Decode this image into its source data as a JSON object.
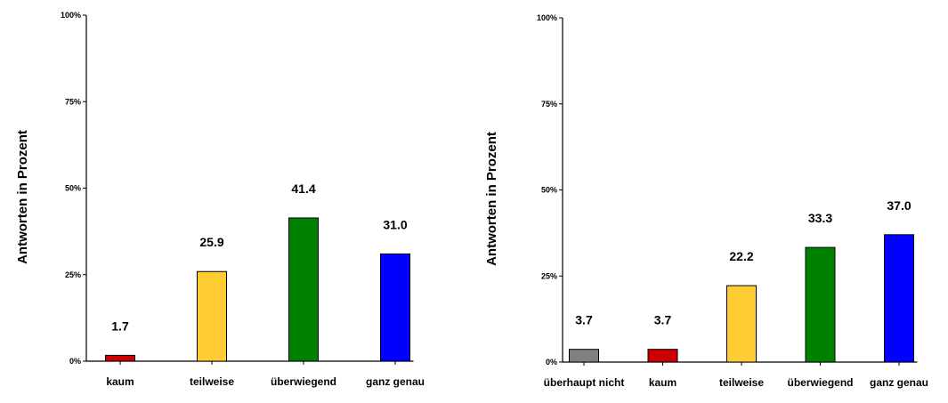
{
  "chart_data": [
    {
      "type": "bar",
      "ylabel": "Antworten in Prozent",
      "ylim": [
        0,
        100
      ],
      "yticks": [
        "0%",
        "25%",
        "50%",
        "75%",
        "100%"
      ],
      "grid": false,
      "categories": [
        "kaum",
        "teilweise",
        "überwiegend",
        "ganz genau"
      ],
      "values": [
        1.7,
        25.9,
        41.4,
        31.0
      ],
      "value_labels": [
        "1.7",
        "25.9",
        "41.4",
        "31.0"
      ],
      "colors": [
        "#cc0000",
        "#ffcc33",
        "#008000",
        "#0000ff"
      ]
    },
    {
      "type": "bar",
      "ylabel": "Antworten in Prozent",
      "ylim": [
        0,
        100
      ],
      "yticks": [
        "0%",
        "25%",
        "50%",
        "75%",
        "100%"
      ],
      "grid": false,
      "categories": [
        "überhaupt nicht",
        "kaum",
        "teilweise",
        "überwiegend",
        "ganz genau"
      ],
      "values": [
        3.7,
        3.7,
        22.2,
        33.3,
        37.0
      ],
      "value_labels": [
        "3.7",
        "3.7",
        "22.2",
        "33.3",
        "37.0"
      ],
      "colors": [
        "#808080",
        "#cc0000",
        "#ffcc33",
        "#008000",
        "#0000ff"
      ]
    }
  ]
}
